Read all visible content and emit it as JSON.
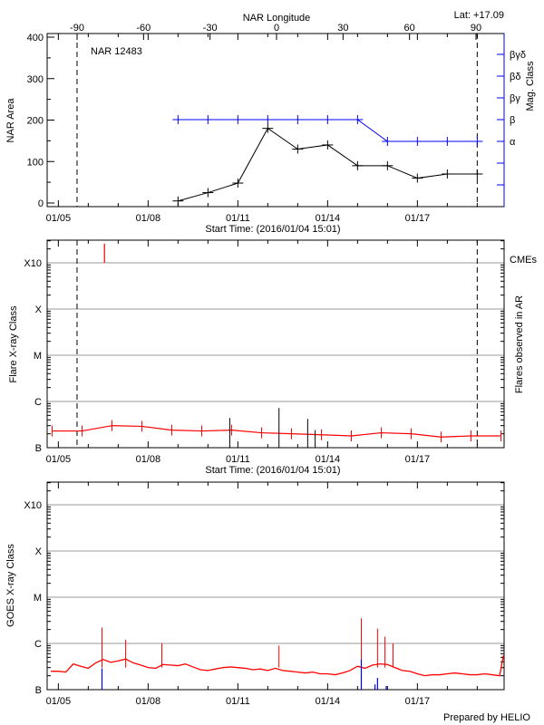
{
  "chart_data": [
    {
      "type": "line",
      "title": "NAR 12483",
      "annotation": "Lat: +17.09",
      "xlabel": "Start Time: (2016/01/04 15:01)",
      "start": "01/04 15:01",
      "x_ticks": [
        "01/05",
        "01/08",
        "01/11",
        "01/14",
        "01/17"
      ],
      "top_axis_label": "NAR Longitude",
      "top_ticks": [
        "-90",
        "-60",
        "-30",
        "0",
        "30",
        "60",
        "90"
      ],
      "ylabel": "NAR Area",
      "ylim": [
        0,
        400
      ],
      "y_ticks": [
        "0",
        "100",
        "200",
        "300",
        "400"
      ],
      "y2label": "Mag. Class",
      "y2_categories": [
        "α",
        "β",
        "βγ",
        "βδ",
        "βγδ"
      ],
      "limb_markers": [
        "01/05 15:00",
        "01/19 00:00"
      ],
      "series": [
        {
          "key": "area",
          "color": "#000000",
          "x": [
            "01/09 00:00",
            "01/10 00:00",
            "01/11 00:00",
            "01/12 00:00",
            "01/13 00:00",
            "01/14 00:00",
            "01/15 00:00",
            "01/16 00:00",
            "01/17 00:00",
            "01/18 00:00",
            "01/19 00:00"
          ],
          "y": [
            5,
            25,
            48,
            180,
            130,
            140,
            90,
            90,
            60,
            70,
            70
          ]
        },
        {
          "key": "mag_class",
          "color": "#0000ff",
          "x": [
            "01/09 00:00",
            "01/10 00:00",
            "01/11 00:00",
            "01/12 00:00",
            "01/13 00:00",
            "01/14 00:00",
            "01/15 00:00",
            "01/16 00:00",
            "01/17 00:00",
            "01/18 00:00",
            "01/19 00:00"
          ],
          "y": [
            "β",
            "β",
            "β",
            "β",
            "β",
            "β",
            "β",
            "α",
            "α",
            "α",
            "α"
          ]
        }
      ]
    },
    {
      "type": "line",
      "xlabel": "Start Time: (2016/01/04 15:01)",
      "x_ticks": [
        "01/05",
        "01/08",
        "01/11",
        "01/14",
        "01/17"
      ],
      "ylabel": "Flare X-ray Class",
      "y_scale": "log",
      "y_classes": [
        "B",
        "C",
        "M",
        "X",
        "X10"
      ],
      "y2label": "Flares observed in AR",
      "cme_label": "CMEs",
      "limb_markers": [
        "01/05 15:00",
        "01/19 00:00"
      ],
      "background": {
        "color": "#ff0000",
        "unit": "B",
        "x": [
          "01/04 19:00",
          "01/05 19:00",
          "01/06 19:00",
          "01/07 19:00",
          "01/08 19:00",
          "01/09 19:00",
          "01/10 19:00",
          "01/11 19:00",
          "01/12 19:00",
          "01/13 19:00",
          "01/14 19:00",
          "01/15 19:00",
          "01/16 19:00",
          "01/17 19:00",
          "01/18 19:00",
          "01/19 19:00"
        ],
        "y": [
          2.3,
          2.3,
          3.0,
          2.9,
          2.4,
          2.3,
          2.4,
          2.1,
          2.0,
          1.9,
          1.8,
          2.1,
          2.0,
          1.7,
          1.8,
          1.8
        ]
      },
      "flares": {
        "color": "#000000",
        "unit": "B",
        "x": [
          "01/10 17:30",
          "01/12 09:00",
          "01/13 08:00",
          "01/13 14:00"
        ],
        "y": [
          4.4,
          7.2,
          4.2,
          2.4
        ]
      },
      "cmes": {
        "color": "#ff0000",
        "x": [
          "01/06 13:00"
        ]
      }
    },
    {
      "type": "line",
      "x_ticks": [
        "01/05",
        "01/08",
        "01/11",
        "01/14",
        "01/17"
      ],
      "ylabel": "GOES X-ray Class",
      "y_scale": "log",
      "y_classes": [
        "B",
        "C",
        "M",
        "X",
        "X10"
      ],
      "credit": "Prepared by HELIO",
      "goes": {
        "color": "#ff0000",
        "unit": "B",
        "x": [
          "01/04 18:00",
          "01/05 00:00",
          "01/05 06:00",
          "01/05 12:00",
          "01/05 18:00",
          "01/06 00:00",
          "01/06 06:00",
          "01/06 12:00",
          "01/06 18:00",
          "01/07 00:00",
          "01/07 06:00",
          "01/07 12:00",
          "01/07 18:00",
          "01/08 00:00",
          "01/08 06:00",
          "01/08 12:00",
          "01/08 18:00",
          "01/09 00:00",
          "01/09 06:00",
          "01/09 12:00",
          "01/09 18:00",
          "01/10 00:00",
          "01/10 06:00",
          "01/10 12:00",
          "01/10 18:00",
          "01/11 00:00",
          "01/11 06:00",
          "01/11 12:00",
          "01/11 18:00",
          "01/12 00:00",
          "01/12 06:00",
          "01/12 12:00",
          "01/12 18:00",
          "01/13 00:00",
          "01/13 06:00",
          "01/13 12:00",
          "01/13 18:00",
          "01/14 00:00",
          "01/14 06:00",
          "01/14 12:00",
          "01/14 18:00",
          "01/15 00:00",
          "01/15 06:00",
          "01/15 12:00",
          "01/15 18:00",
          "01/16 00:00",
          "01/16 06:00",
          "01/16 12:00",
          "01/16 18:00",
          "01/17 00:00",
          "01/17 06:00",
          "01/17 12:00",
          "01/17 18:00",
          "01/18 00:00",
          "01/18 06:00",
          "01/18 12:00",
          "01/18 18:00",
          "01/19 00:00",
          "01/19 06:00",
          "01/19 12:00",
          "01/19 18:00",
          "01/19 21:00"
        ],
        "y": [
          2.5,
          2.5,
          2.4,
          3.6,
          3.2,
          2.9,
          3.8,
          4.5,
          3.9,
          4.2,
          4.6,
          3.8,
          3.4,
          3.0,
          2.9,
          3.5,
          3.4,
          3.3,
          3.6,
          3.1,
          2.7,
          2.6,
          2.8,
          3.0,
          3.1,
          3.0,
          2.9,
          2.7,
          2.8,
          2.6,
          2.9,
          2.6,
          2.5,
          2.4,
          2.3,
          2.4,
          2.2,
          2.2,
          2.1,
          2.3,
          2.6,
          3.2,
          2.9,
          3.4,
          3.6,
          3.5,
          3.0,
          2.6,
          2.5,
          2.2,
          2.0,
          2.1,
          2.1,
          2.2,
          2.3,
          2.2,
          2.1,
          2.1,
          2.2,
          2.1,
          2.0,
          5.5
        ]
      },
      "spikes": {
        "color": "#ff0000",
        "unit": "B",
        "x": [
          "01/06 11:00",
          "01/07 06:00",
          "01/08 11:00",
          "01/12 09:00",
          "01/15 03:00",
          "01/15 16:00",
          "01/15 22:00",
          "01/16 04:30"
        ],
        "y": [
          22,
          12,
          10,
          9,
          35,
          21,
          14,
          10
        ]
      },
      "events": {
        "color": "#0000ff",
        "unit": "B",
        "x": [
          "01/06 11:00",
          "01/15 03:00",
          "01/15 14:00",
          "01/15 16:00",
          "01/15 23:00"
        ],
        "y": [
          2.9,
          4.5,
          1.3,
          1.8,
          1.2
        ]
      }
    }
  ]
}
